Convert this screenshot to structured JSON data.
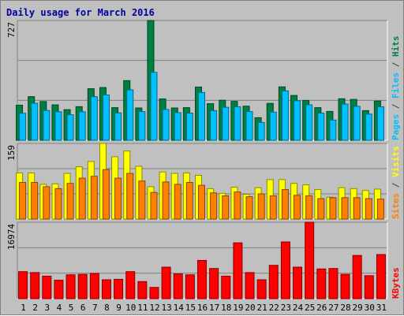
{
  "chart_data": {
    "type": "bar",
    "title": "Daily usage for March 2016",
    "categories": [
      "1",
      "2",
      "3",
      "4",
      "5",
      "6",
      "7",
      "8",
      "9",
      "10",
      "11",
      "12",
      "13",
      "14",
      "15",
      "16",
      "17",
      "18",
      "19",
      "20",
      "21",
      "22",
      "23",
      "24",
      "25",
      "26",
      "27",
      "28",
      "29",
      "30",
      "31"
    ],
    "weekend_days": [
      5,
      6,
      12,
      13,
      19,
      20,
      26,
      27
    ],
    "weekend_color": "#008040",
    "weekday_color": "#000000",
    "panels": [
      {
        "id": "top",
        "max_label": "727",
        "ylim": [
          0,
          727
        ],
        "series": [
          {
            "name": "Hits",
            "color": "#008040",
            "values": [
              213,
              265,
              235,
              215,
              186,
              204,
              313,
              320,
              198,
              362,
              196,
              727,
              251,
              196,
              198,
              323,
              222,
              243,
              236,
              207,
              137,
              224,
              324,
              272,
              242,
              198,
              175,
              252,
              248,
              180,
              238
            ]
          },
          {
            "name": "Files",
            "color": "#00c0ff",
            "values": [
              164,
              225,
              181,
              173,
              155,
              173,
              265,
              275,
              166,
              306,
              174,
              412,
              187,
              168,
              165,
              290,
              180,
              200,
              203,
              174,
              108,
              171,
              300,
              240,
              215,
              165,
              123,
              220,
              206,
              159,
              203
            ]
          },
          {
            "name": "Pages",
            "color": "#00c0ff"
          }
        ]
      },
      {
        "id": "middle",
        "max_label": "159",
        "ylim": [
          0,
          159
        ],
        "series": [
          {
            "name": "Visits",
            "color": "#ffff00",
            "values": [
              97,
              97,
              73,
              74,
              96,
              110,
              121,
              159,
              131,
              143,
              111,
              68,
              99,
              96,
              97,
              92,
              64,
              54,
              67,
              52,
              66,
              83,
              83,
              75,
              72,
              62,
              46,
              66,
              64,
              60,
              63
            ]
          },
          {
            "name": "Sites",
            "color": "#ff8000",
            "values": [
              77,
              77,
              68,
              64,
              75,
              86,
              90,
              104,
              86,
              96,
              80,
              56,
              78,
              73,
              77,
              71,
              55,
              49,
              57,
              47,
              53,
              49,
              62,
              50,
              49,
              43,
              45,
              45,
              45,
              43,
              42
            ]
          }
        ]
      },
      {
        "id": "bottom",
        "max_label": "16974",
        "ylim": [
          0,
          16974
        ],
        "series": [
          {
            "name": "KBytes",
            "color": "#ff0000",
            "values": [
              6000,
              5800,
              5000,
              4100,
              5300,
              5400,
              5600,
              4200,
              4300,
              6000,
              3800,
              2500,
              7000,
              5500,
              5300,
              8500,
              6700,
              5000,
              12400,
              5800,
              4200,
              7400,
              12600,
              7000,
              16974,
              6600,
              6700,
              5400,
              9600,
              5100,
              9800
            ]
          }
        ]
      }
    ]
  }
}
